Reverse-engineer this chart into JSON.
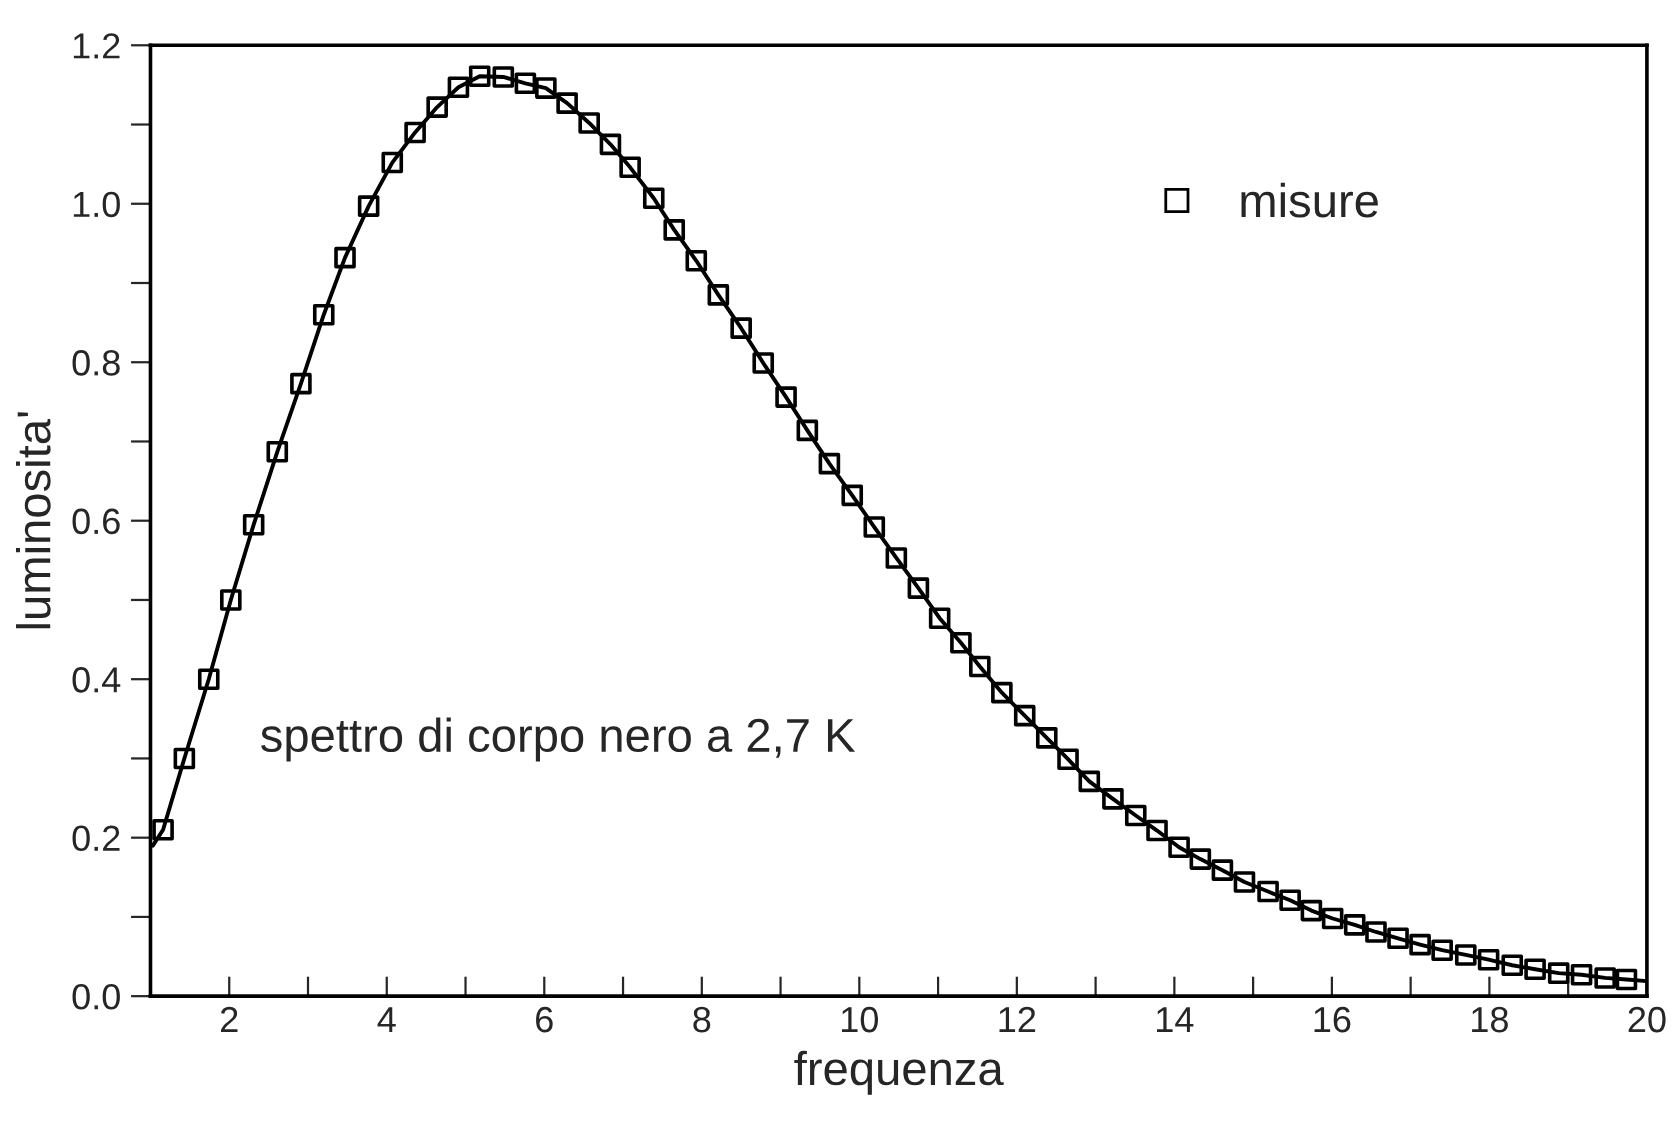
{
  "chart_data": {
    "type": "scatter",
    "xlabel": "frequenza",
    "ylabel": "luminosita'",
    "annotations": [
      "spettro di corpo nero a 2,7 K"
    ],
    "xlim": [
      1,
      20
    ],
    "ylim": [
      0,
      1.2
    ],
    "xticks": [
      2,
      {
        "value": 3,
        "label": null
      },
      4,
      {
        "value": 5,
        "label": null
      },
      6,
      {
        "value": 7,
        "label": null
      },
      8,
      {
        "value": 9,
        "label": null
      },
      10,
      {
        "value": 11,
        "label": null
      },
      12,
      {
        "value": 13,
        "label": null
      },
      14,
      {
        "value": 15,
        "label": null
      },
      16,
      {
        "value": 17,
        "label": null
      },
      18,
      {
        "value": 19,
        "label": null
      },
      20
    ],
    "yticks": [
      {
        "value": 0,
        "label": "0.0"
      },
      {
        "value": 0.1,
        "label": null
      },
      0.2,
      {
        "value": 0.3,
        "label": null
      },
      0.4,
      {
        "value": 0.5,
        "label": null
      },
      0.6,
      {
        "value": 0.7,
        "label": null
      },
      0.8,
      {
        "value": 0.9,
        "label": null
      },
      {
        "value": 1,
        "label": "1.0"
      },
      {
        "value": 1.1,
        "label": null
      },
      1.2
    ],
    "grid": false,
    "legend": "top right",
    "series": [
      {
        "name": "misure",
        "color": "#000000",
        "marker": "square",
        "x": [
          1.16,
          1.43,
          1.74,
          2.02,
          2.31,
          2.61,
          2.91,
          3.2,
          3.47,
          3.77,
          4.07,
          4.36,
          4.64,
          4.91,
          5.18,
          5.48,
          5.76,
          6.02,
          6.29,
          6.57,
          6.84,
          7.09,
          7.39,
          7.65,
          7.93,
          8.21,
          8.5,
          8.78,
          9.07,
          9.34,
          9.62,
          9.91,
          10.19,
          10.47,
          10.75,
          11.02,
          11.29,
          11.53,
          11.81,
          12.1,
          12.38,
          12.65,
          12.92,
          13.22,
          13.51,
          13.78,
          14.06,
          14.33,
          14.61,
          14.89,
          15.19,
          15.47,
          15.74,
          16.01,
          16.29,
          16.56,
          16.84,
          17.12,
          17.4,
          17.7,
          17.99,
          18.29,
          18.58,
          18.88,
          19.17,
          19.47,
          19.74
        ],
        "values": [
          0.21,
          0.3,
          0.4,
          0.5,
          0.595,
          0.687,
          0.773,
          0.86,
          0.932,
          0.997,
          1.052,
          1.09,
          1.122,
          1.147,
          1.161,
          1.16,
          1.152,
          1.146,
          1.127,
          1.102,
          1.075,
          1.046,
          1.007,
          0.967,
          0.928,
          0.885,
          0.843,
          0.799,
          0.756,
          0.714,
          0.672,
          0.632,
          0.592,
          0.553,
          0.515,
          0.477,
          0.446,
          0.416,
          0.383,
          0.354,
          0.326,
          0.299,
          0.271,
          0.249,
          0.228,
          0.209,
          0.188,
          0.173,
          0.159,
          0.144,
          0.132,
          0.121,
          0.108,
          0.098,
          0.09,
          0.081,
          0.073,
          0.065,
          0.058,
          0.052,
          0.046,
          0.039,
          0.034,
          0.029,
          0.027,
          0.023,
          0.021
        ]
      },
      {
        "type": "line",
        "color": "#000000",
        "line_style": "solid",
        "marker": "none",
        "x": [
          1.03,
          1.16,
          1.43,
          1.74,
          2.02,
          2.31,
          2.61,
          2.91,
          3.2,
          3.47,
          3.77,
          4.07,
          4.36,
          4.64,
          4.91,
          5.18,
          5.48,
          5.76,
          6.02,
          6.29,
          6.57,
          6.84,
          7.09,
          7.39,
          7.65,
          7.93,
          8.21,
          8.5,
          8.78,
          9.07,
          9.34,
          9.62,
          9.91,
          10.19,
          10.47,
          10.75,
          11.02,
          11.29,
          11.53,
          11.81,
          12.1,
          12.38,
          12.65,
          12.92,
          13.22,
          13.51,
          13.78,
          14.06,
          14.33,
          14.61,
          14.89,
          15.19,
          15.47,
          15.74,
          16.01,
          16.29,
          16.56,
          16.84,
          17.12,
          17.4,
          17.7,
          17.99,
          18.29,
          18.58,
          18.88,
          19.17,
          19.47,
          19.74,
          20.0
        ],
        "values": [
          0.19,
          0.21,
          0.3,
          0.4,
          0.5,
          0.595,
          0.687,
          0.773,
          0.86,
          0.932,
          0.997,
          1.052,
          1.09,
          1.122,
          1.147,
          1.161,
          1.16,
          1.152,
          1.146,
          1.127,
          1.102,
          1.075,
          1.046,
          1.007,
          0.967,
          0.928,
          0.885,
          0.843,
          0.799,
          0.756,
          0.714,
          0.672,
          0.632,
          0.592,
          0.553,
          0.515,
          0.477,
          0.446,
          0.416,
          0.383,
          0.354,
          0.326,
          0.299,
          0.271,
          0.249,
          0.228,
          0.209,
          0.188,
          0.173,
          0.159,
          0.144,
          0.132,
          0.121,
          0.108,
          0.098,
          0.09,
          0.081,
          0.073,
          0.065,
          0.058,
          0.052,
          0.046,
          0.039,
          0.034,
          0.029,
          0.027,
          0.023,
          0.021,
          0.019
        ]
      }
    ]
  }
}
